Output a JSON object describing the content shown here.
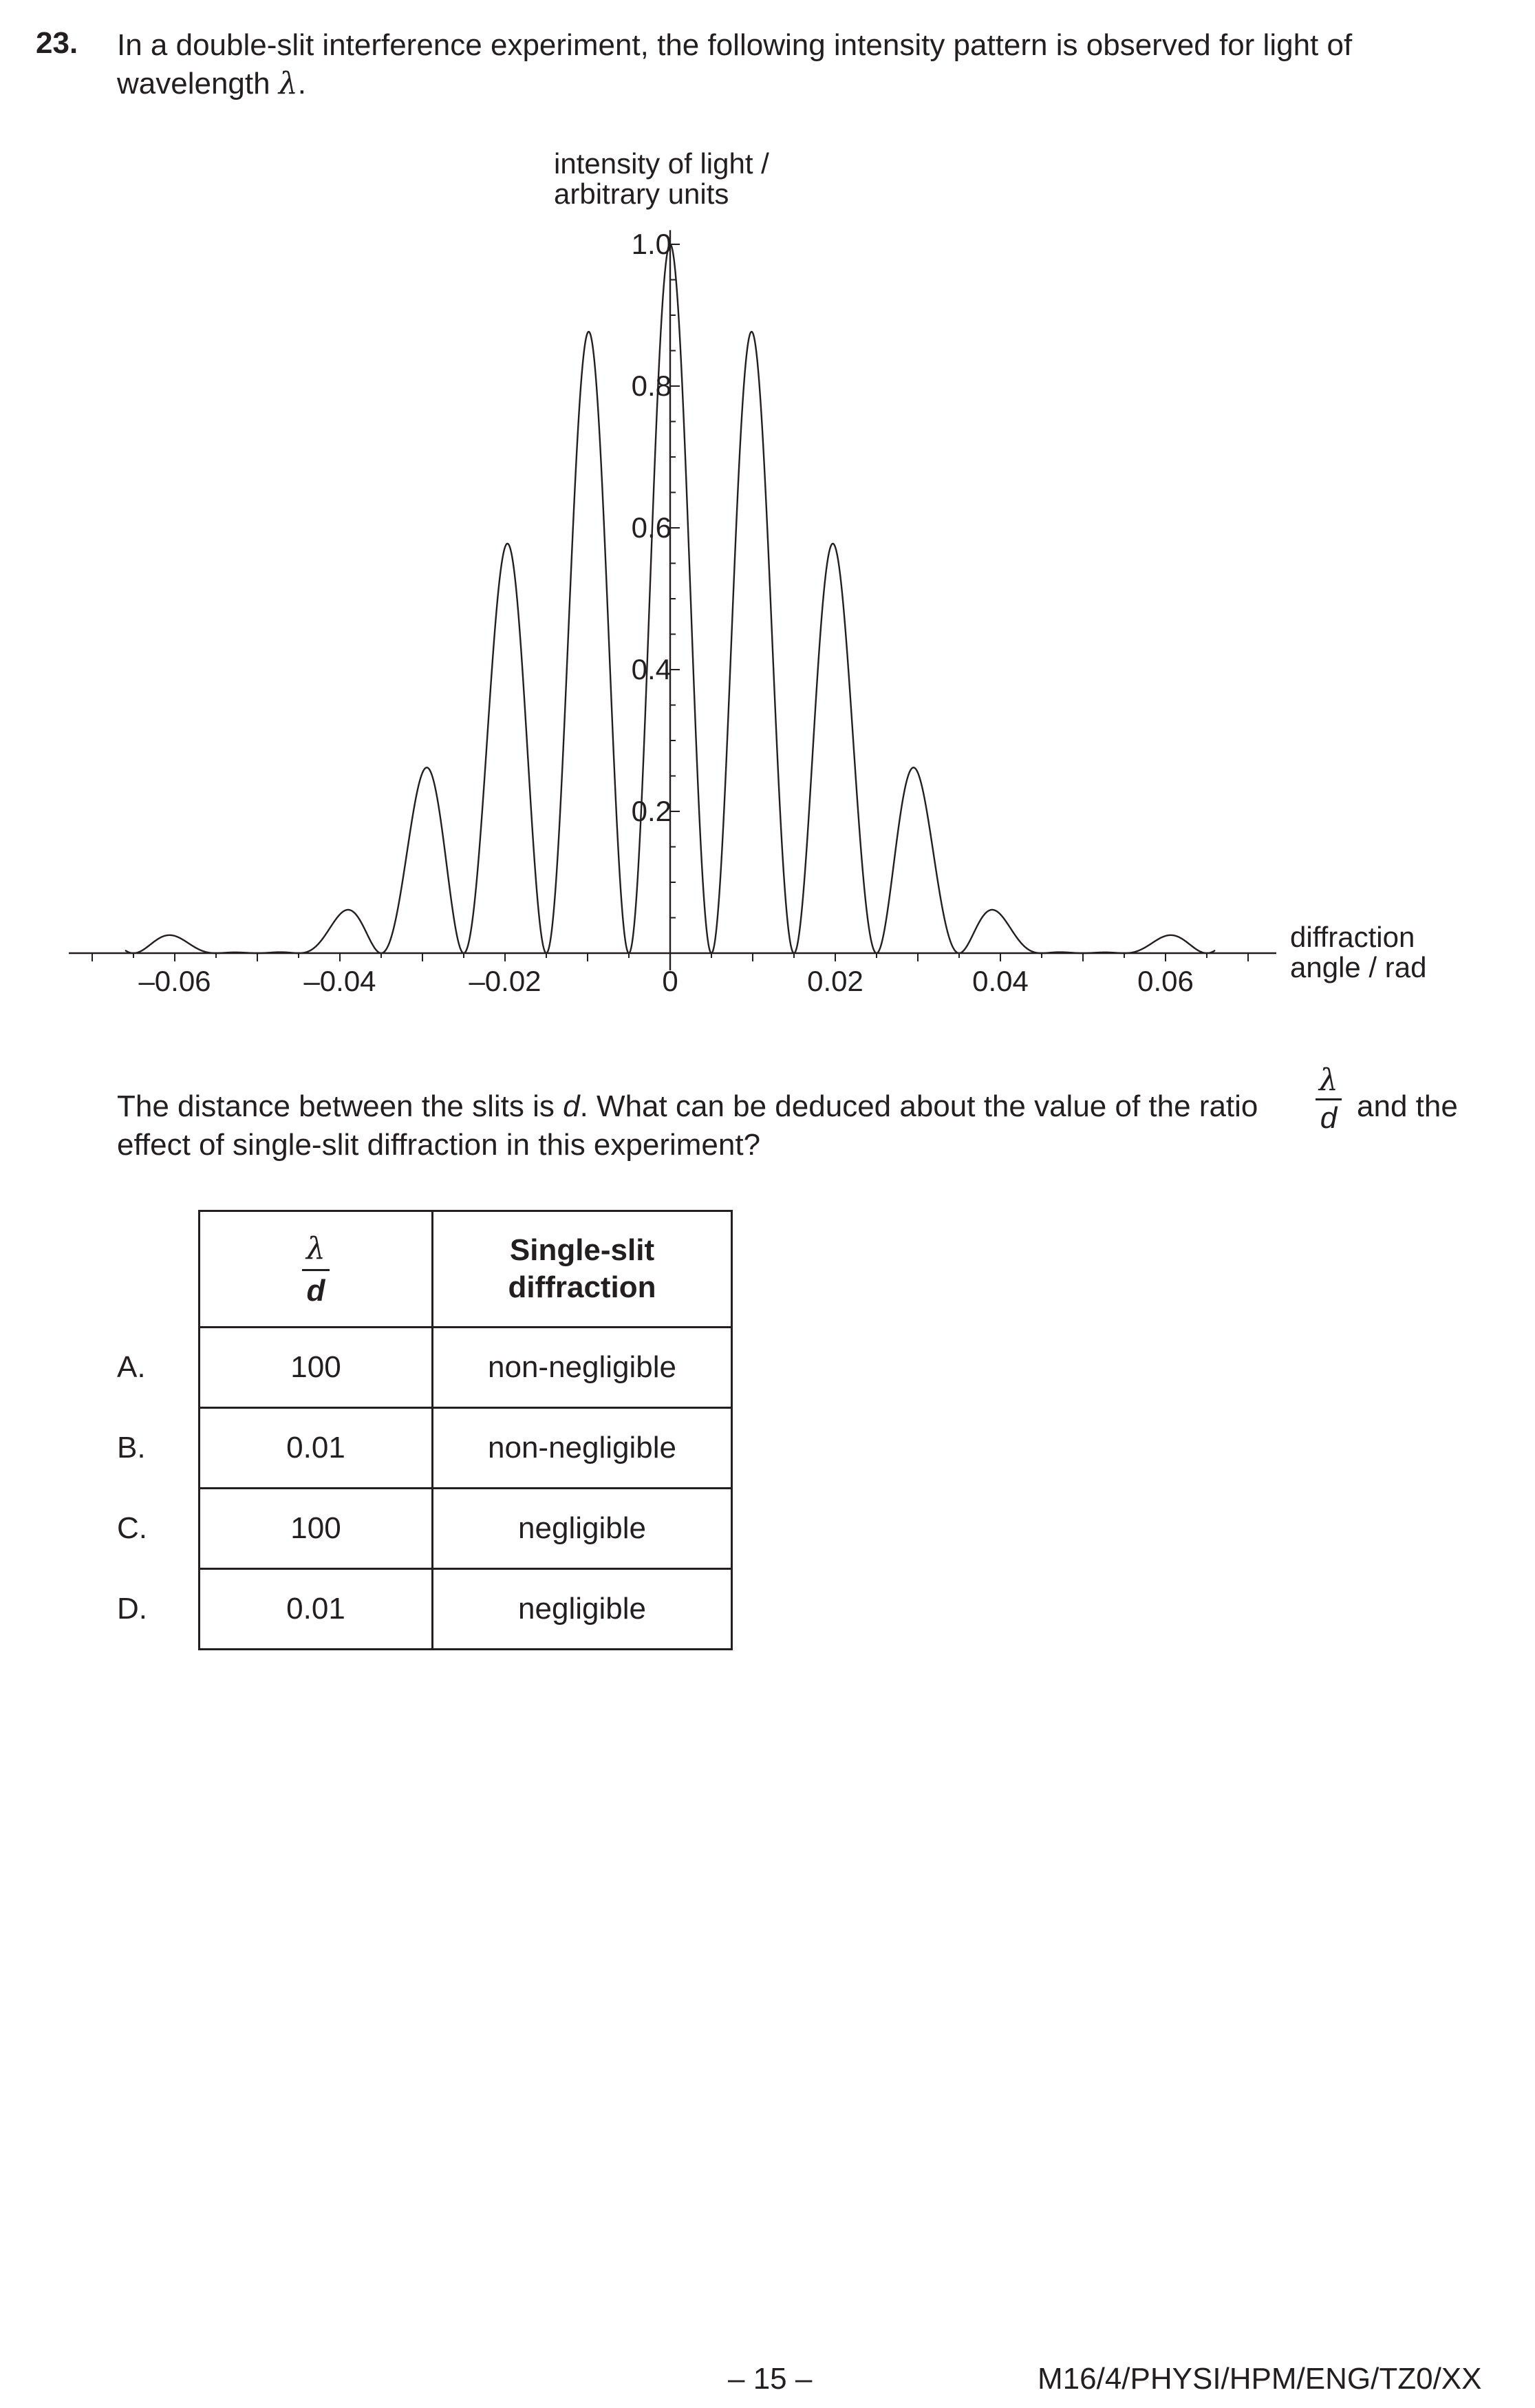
{
  "question": {
    "number": "23.",
    "line1": "In a double-slit interference experiment, the following intensity pattern is observed for light of",
    "line2_prefix": "wavelength ",
    "line2_symbol": "λ",
    "line2_suffix": "."
  },
  "chart_data": {
    "type": "line",
    "ylabel_line1": "intensity of light /",
    "ylabel_line2": "arbitrary units",
    "xlabel_line1": "diffraction",
    "xlabel_line2": "angle / rad",
    "x_ticks": [
      "–0.06",
      "–0.04",
      "–0.02",
      "0",
      "0.02",
      "0.04",
      "0.06"
    ],
    "x_tick_values": [
      -0.06,
      -0.04,
      -0.02,
      0,
      0.02,
      0.04,
      0.06
    ],
    "y_ticks": [
      "0.2",
      "0.4",
      "0.6",
      "0.8",
      "1.0"
    ],
    "y_tick_values": [
      0.2,
      0.4,
      0.6,
      0.8,
      1.0
    ],
    "xlim": [
      -0.072,
      0.072
    ],
    "ylim": [
      0,
      1.0
    ],
    "curve_range": [
      -0.066,
      0.066
    ],
    "interference_max_spacing": 0.01,
    "single_slit_first_min": 0.05,
    "peaks": [
      {
        "x": -0.06,
        "y": 0.11
      },
      {
        "x": -0.05,
        "y": 0.0
      },
      {
        "x": -0.04,
        "y": 0.11
      },
      {
        "x": -0.03,
        "y": 0.37
      },
      {
        "x": -0.02,
        "y": 0.68
      },
      {
        "x": -0.01,
        "y": 0.92
      },
      {
        "x": 0,
        "y": 1.0
      },
      {
        "x": 0.01,
        "y": 0.92
      },
      {
        "x": 0.02,
        "y": 0.68
      },
      {
        "x": 0.03,
        "y": 0.37
      },
      {
        "x": 0.04,
        "y": 0.11
      },
      {
        "x": 0.05,
        "y": 0.0
      },
      {
        "x": 0.06,
        "y": 0.11
      }
    ]
  },
  "paragraph": {
    "line1": "The distance between the slits is ",
    "d": "d",
    "line1b": ". What can be deduced about the value of the ratio",
    "frac_num": "λ",
    "frac_den": "d",
    "line1c": "and the",
    "line2": "effect of single-slit diffraction in this experiment?"
  },
  "table": {
    "header_ratio_num": "λ",
    "header_ratio_den": "d",
    "header_col2_line1": "Single-slit",
    "header_col2_line2": "diffraction",
    "rows": [
      {
        "label": "A.",
        "ratio": "100",
        "effect": "non-negligible"
      },
      {
        "label": "B.",
        "ratio": "0.01",
        "effect": "non-negligible"
      },
      {
        "label": "C.",
        "ratio": "100",
        "effect": "negligible"
      },
      {
        "label": "D.",
        "ratio": "0.01",
        "effect": "negligible"
      }
    ]
  },
  "footer": {
    "page": "– 15 –",
    "code": "M16/4/PHYSI/HPM/ENG/TZ0/XX"
  }
}
